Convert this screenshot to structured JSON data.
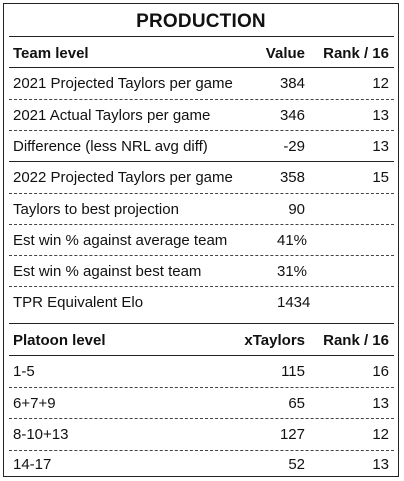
{
  "title": "PRODUCTION",
  "team": {
    "header": {
      "label": "Team level",
      "value": "Value",
      "rank": "Rank / 16"
    },
    "rows": [
      {
        "label": "2021 Projected Taylors per game",
        "value": "384",
        "rank": "12"
      },
      {
        "label": "2021 Actual Taylors per game",
        "value": "346",
        "rank": "13"
      },
      {
        "label": "Difference (less NRL avg diff)",
        "value": "-29",
        "rank": "13"
      },
      {
        "label": "2022 Projected Taylors per game",
        "value": "358",
        "rank": "15"
      },
      {
        "label": "Taylors to best projection",
        "value": "90",
        "rank": ""
      },
      {
        "label": "Est win % against average team",
        "value": "41%",
        "rank": ""
      },
      {
        "label": "Est win % against best team",
        "value": "31%",
        "rank": ""
      },
      {
        "label": "TPR Equivalent Elo",
        "value": "1434",
        "rank": ""
      }
    ]
  },
  "platoon": {
    "header": {
      "label": "Platoon level",
      "value": "xTaylors",
      "rank": "Rank / 16"
    },
    "rows": [
      {
        "label": "1-5",
        "value": "115",
        "rank": "16"
      },
      {
        "label": "6+7+9",
        "value": "65",
        "rank": "13"
      },
      {
        "label": "8-10+13",
        "value": "127",
        "rank": "12"
      },
      {
        "label": "14-17",
        "value": "52",
        "rank": "13"
      }
    ]
  }
}
